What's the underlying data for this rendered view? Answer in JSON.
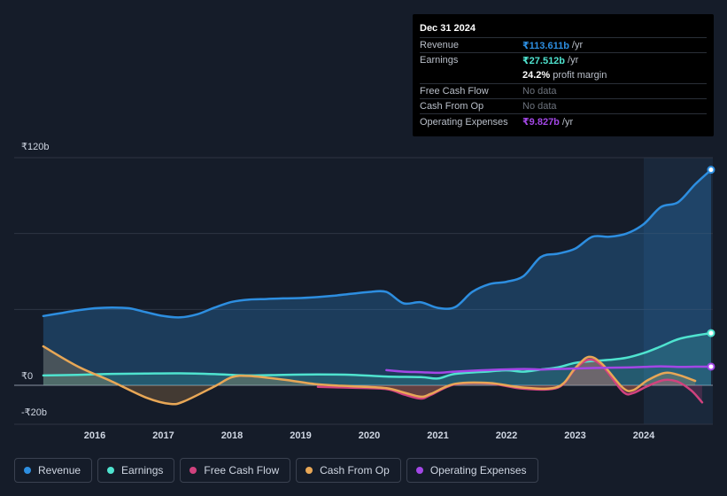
{
  "chart_data": {
    "type": "line",
    "x_min": 2015.2,
    "x_max": 2024.98,
    "ylim": [
      -20,
      120
    ],
    "y_ticks": [
      {
        "value": 120,
        "label": "₹120b"
      },
      {
        "value": 0,
        "label": "₹0"
      },
      {
        "value": -20,
        "label": "-₹20b"
      }
    ],
    "x_ticks": [
      {
        "value": 2016,
        "label": "2016"
      },
      {
        "value": 2017,
        "label": "2017"
      },
      {
        "value": 2018,
        "label": "2018"
      },
      {
        "value": 2019,
        "label": "2019"
      },
      {
        "value": 2020,
        "label": "2020"
      },
      {
        "value": 2021,
        "label": "2021"
      },
      {
        "value": 2022,
        "label": "2022"
      },
      {
        "value": 2023,
        "label": "2023"
      },
      {
        "value": 2024,
        "label": "2024"
      }
    ],
    "forecast_start": 2024.0,
    "series": [
      {
        "name": "Revenue",
        "color": "#2d8ee0",
        "fill": true,
        "end_marker": true,
        "points": [
          [
            2015.25,
            36.5
          ],
          [
            2015.5,
            38
          ],
          [
            2015.75,
            39.5
          ],
          [
            2016.0,
            40.6
          ],
          [
            2016.25,
            41
          ],
          [
            2016.5,
            40.6
          ],
          [
            2016.75,
            38.5
          ],
          [
            2017.0,
            36.5
          ],
          [
            2017.25,
            35.8
          ],
          [
            2017.5,
            37.5
          ],
          [
            2017.75,
            41
          ],
          [
            2018.0,
            44
          ],
          [
            2018.25,
            45.2
          ],
          [
            2018.5,
            45.5
          ],
          [
            2018.75,
            45.8
          ],
          [
            2019.0,
            46
          ],
          [
            2019.25,
            46.5
          ],
          [
            2019.5,
            47.3
          ],
          [
            2019.75,
            48.3
          ],
          [
            2020.0,
            49.2
          ],
          [
            2020.25,
            49.2
          ],
          [
            2020.5,
            43.2
          ],
          [
            2020.75,
            43.8
          ],
          [
            2021.0,
            40.8
          ],
          [
            2021.25,
            41.2
          ],
          [
            2021.5,
            49.2
          ],
          [
            2021.75,
            53.3
          ],
          [
            2022.0,
            54.6
          ],
          [
            2022.25,
            57.6
          ],
          [
            2022.5,
            67.6
          ],
          [
            2022.75,
            69.4
          ],
          [
            2023.0,
            72
          ],
          [
            2023.25,
            78.3
          ],
          [
            2023.5,
            78.3
          ],
          [
            2023.75,
            80
          ],
          [
            2024.0,
            85
          ],
          [
            2024.25,
            94
          ],
          [
            2024.5,
            96.5
          ],
          [
            2024.75,
            106
          ],
          [
            2024.98,
            113.611
          ]
        ]
      },
      {
        "name": "Earnings",
        "color": "#4fe3cf",
        "fill": true,
        "end_marker": true,
        "points": [
          [
            2015.25,
            5.2
          ],
          [
            2015.75,
            5.5
          ],
          [
            2016.25,
            6
          ],
          [
            2016.75,
            6.2
          ],
          [
            2017.25,
            6.3
          ],
          [
            2017.75,
            5.9
          ],
          [
            2018.25,
            5.2
          ],
          [
            2018.75,
            5.5
          ],
          [
            2019.25,
            5.7
          ],
          [
            2019.75,
            5.5
          ],
          [
            2020.25,
            4.6
          ],
          [
            2020.75,
            4.3
          ],
          [
            2021.0,
            3.6
          ],
          [
            2021.25,
            6
          ],
          [
            2021.75,
            7.3
          ],
          [
            2022.0,
            7.9
          ],
          [
            2022.25,
            7.2
          ],
          [
            2022.5,
            8.3
          ],
          [
            2022.75,
            9.5
          ],
          [
            2023.0,
            11.8
          ],
          [
            2023.25,
            12.8
          ],
          [
            2023.5,
            13.4
          ],
          [
            2023.75,
            14.5
          ],
          [
            2024.0,
            17
          ],
          [
            2024.25,
            20.5
          ],
          [
            2024.5,
            24.3
          ],
          [
            2024.75,
            26.2
          ],
          [
            2024.98,
            27.512
          ]
        ]
      },
      {
        "name": "Free Cash Flow",
        "color": "#d1427e",
        "fill": true,
        "end_marker": false,
        "points": [
          [
            2019.25,
            -0.8
          ],
          [
            2019.75,
            -1.3
          ],
          [
            2020.25,
            -2
          ],
          [
            2020.5,
            -4.8
          ],
          [
            2020.75,
            -7
          ],
          [
            2020.9,
            -5
          ],
          [
            2021.25,
            0.5
          ],
          [
            2021.75,
            1
          ],
          [
            2022.25,
            -1.8
          ],
          [
            2022.75,
            -1.2
          ],
          [
            2023.0,
            8.5
          ],
          [
            2023.2,
            13.5
          ],
          [
            2023.4,
            10
          ],
          [
            2023.7,
            -3.5
          ],
          [
            2023.85,
            -4
          ],
          [
            2024.05,
            -0.5
          ],
          [
            2024.3,
            2.8
          ],
          [
            2024.5,
            1.8
          ],
          [
            2024.7,
            -3
          ],
          [
            2024.85,
            -9
          ]
        ]
      },
      {
        "name": "Cash From Op",
        "color": "#e8a756",
        "fill": true,
        "end_marker": false,
        "points": [
          [
            2015.25,
            20.5
          ],
          [
            2015.75,
            10
          ],
          [
            2016.25,
            2
          ],
          [
            2016.75,
            -6.5
          ],
          [
            2017.1,
            -9.8
          ],
          [
            2017.3,
            -8.5
          ],
          [
            2017.75,
            -0.5
          ],
          [
            2018.0,
            4.3
          ],
          [
            2018.25,
            4.9
          ],
          [
            2018.75,
            3
          ],
          [
            2019.25,
            0.5
          ],
          [
            2019.75,
            -0.5
          ],
          [
            2020.25,
            -1.5
          ],
          [
            2020.5,
            -3.8
          ],
          [
            2020.75,
            -6
          ],
          [
            2020.9,
            -4.5
          ],
          [
            2021.25,
            0.8
          ],
          [
            2021.75,
            1.2
          ],
          [
            2022.25,
            -1.2
          ],
          [
            2022.75,
            -0.8
          ],
          [
            2023.0,
            9
          ],
          [
            2023.2,
            15
          ],
          [
            2023.4,
            11
          ],
          [
            2023.7,
            -1.5
          ],
          [
            2023.85,
            -2.5
          ],
          [
            2024.05,
            2.5
          ],
          [
            2024.3,
            6.5
          ],
          [
            2024.5,
            5.5
          ],
          [
            2024.75,
            2.3
          ]
        ]
      },
      {
        "name": "Operating Expenses",
        "color": "#a347e6",
        "fill": false,
        "end_marker": true,
        "points": [
          [
            2020.25,
            8
          ],
          [
            2020.5,
            7.2
          ],
          [
            2020.75,
            6.9
          ],
          [
            2021.0,
            6.6
          ],
          [
            2021.25,
            7.2
          ],
          [
            2021.75,
            8.1
          ],
          [
            2022.25,
            8.6
          ],
          [
            2022.5,
            8.3
          ],
          [
            2022.75,
            8.6
          ],
          [
            2023.25,
            9.1
          ],
          [
            2023.75,
            9.4
          ],
          [
            2024.0,
            9.7
          ],
          [
            2024.25,
            10
          ],
          [
            2024.5,
            9.7
          ],
          [
            2024.75,
            9.8
          ],
          [
            2024.98,
            9.827
          ]
        ]
      }
    ]
  },
  "tooltip": {
    "date": "Dec 31 2024",
    "rows": [
      {
        "label": "Revenue",
        "value": "₹113.611b",
        "suffix": "/yr",
        "color": "#2d8ee0"
      },
      {
        "label": "Earnings",
        "value": "₹27.512b",
        "suffix": "/yr",
        "color": "#4fe3cf"
      },
      {
        "label": "",
        "value": "24.2%",
        "suffix": "profit margin",
        "color": "#ffffff"
      },
      {
        "label": "Free Cash Flow",
        "value": "No data",
        "suffix": "",
        "color": "#6d737d"
      },
      {
        "label": "Cash From Op",
        "value": "No data",
        "suffix": "",
        "color": "#6d737d"
      },
      {
        "label": "Operating Expenses",
        "value": "₹9.827b",
        "suffix": "/yr",
        "color": "#a347e6"
      }
    ]
  },
  "legend": [
    {
      "label": "Revenue",
      "color": "#2d8ee0"
    },
    {
      "label": "Earnings",
      "color": "#4fe3cf"
    },
    {
      "label": "Free Cash Flow",
      "color": "#d1427e"
    },
    {
      "label": "Cash From Op",
      "color": "#e8a756"
    },
    {
      "label": "Operating Expenses",
      "color": "#a347e6"
    }
  ]
}
